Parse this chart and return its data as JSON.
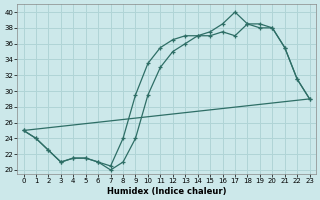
{
  "xlabel": "Humidex (Indice chaleur)",
  "ylabel": "",
  "xlim": [
    -0.5,
    23.5
  ],
  "ylim": [
    19.5,
    41
  ],
  "yticks": [
    20,
    22,
    24,
    26,
    28,
    30,
    32,
    34,
    36,
    38,
    40
  ],
  "xticks": [
    0,
    1,
    2,
    3,
    4,
    5,
    6,
    7,
    8,
    9,
    10,
    11,
    12,
    13,
    14,
    15,
    16,
    17,
    18,
    19,
    20,
    21,
    22,
    23
  ],
  "bg_color": "#cce8ea",
  "grid_color": "#b0d4d6",
  "line_color": "#2e6e66",
  "line1_x": [
    0,
    1,
    2,
    3,
    4,
    5,
    6,
    7,
    8,
    9,
    10,
    11,
    12,
    13,
    14,
    15,
    16,
    17,
    18,
    19,
    20,
    21,
    22,
    23
  ],
  "line1_y": [
    25,
    24,
    22.5,
    21,
    21.5,
    21.5,
    21,
    20,
    21,
    24,
    29.5,
    33,
    35,
    36,
    37,
    37,
    37.5,
    37,
    38.5,
    38.5,
    38,
    35.5,
    31.5,
    29
  ],
  "line2_x": [
    0,
    1,
    2,
    3,
    4,
    5,
    6,
    7,
    8,
    9,
    10,
    11,
    12,
    13,
    14,
    15,
    16,
    17,
    18,
    19,
    20,
    21,
    22,
    23
  ],
  "line2_y": [
    25,
    24,
    22.5,
    21,
    21.5,
    21.5,
    21,
    20.5,
    24,
    29.5,
    33.5,
    35.5,
    36.5,
    37,
    37,
    37.5,
    38.5,
    40,
    38.5,
    38,
    38,
    35.5,
    31.5,
    29
  ],
  "line3_x": [
    0,
    23
  ],
  "line3_y": [
    25,
    29
  ]
}
